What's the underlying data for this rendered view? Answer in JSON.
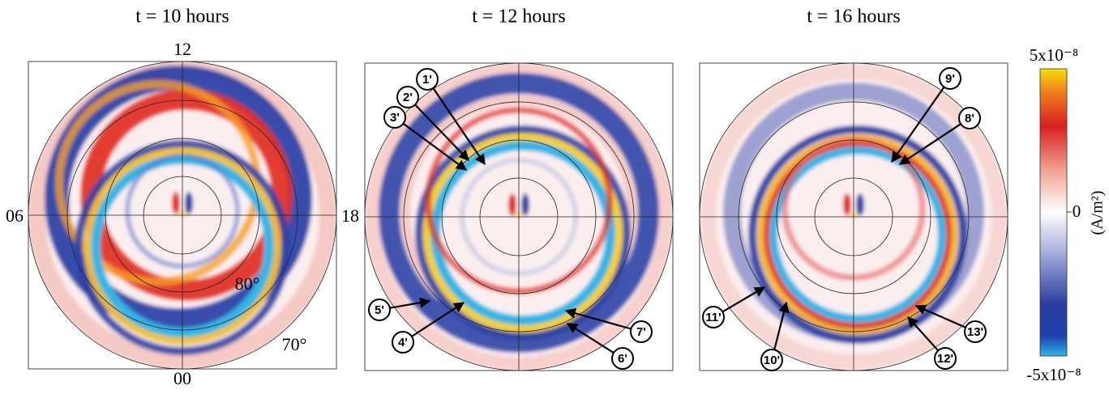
{
  "panels": [
    {
      "title": "t = 10 hours",
      "labels": {
        "top": "12",
        "left": "06",
        "right": "18",
        "bottom": "00",
        "inner_lat": "80°",
        "outer_lat": "70°"
      },
      "markers": []
    },
    {
      "title": "t = 12 hours",
      "markers": [
        "1'",
        "2'",
        "3'",
        "4'",
        "5'",
        "6'",
        "7'"
      ]
    },
    {
      "title": "t = 16 hours",
      "markers": [
        "8'",
        "9'",
        "10'",
        "11'",
        "12'",
        "13'"
      ]
    }
  ],
  "colorbar": {
    "max": "5x10⁻⁸",
    "mid": "0",
    "min": "-5x10⁻⁸",
    "unit": "(A/m²)"
  }
}
